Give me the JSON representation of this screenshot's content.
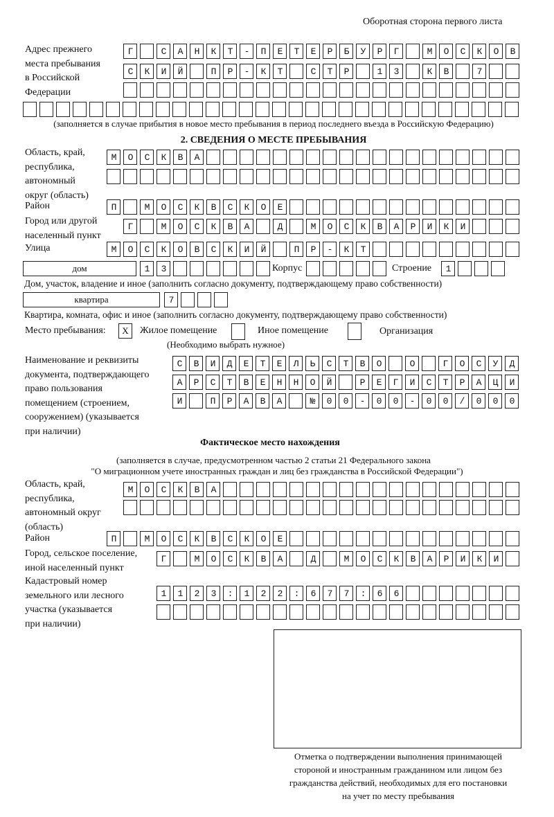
{
  "header": "Оборотная сторона первого листа",
  "previous_address": {
    "label": [
      "Адрес прежнего",
      "места пребывания",
      "в Российской",
      "Федерации"
    ],
    "rows": [
      "Г САНКТ-ПЕТЕРБУРГ МОСКОВ",
      "СКИЙ ПР-КТ СТР 13 КВ 7",
      "",
      ""
    ],
    "note": "(заполняется в случае прибытия в новое место пребывания в период последнего въезда в Российскую Федерацию)"
  },
  "section2": {
    "title": "2. СВЕДЕНИЯ О МЕСТЕ ПРЕБЫВАНИЯ",
    "region_label": [
      "Область, край,",
      "республика,",
      "автономный",
      "округ (область)"
    ],
    "region_rows": [
      "МОСКВА",
      ""
    ],
    "district_label": "Район",
    "district": "П МОСКВСКОЕ",
    "city_label": [
      "Город или другой",
      "населенный пункт"
    ],
    "city": "Г МОСКВА Д МОСКВАРИКИ",
    "street_label": "Улица",
    "street": "МОСКОВСКИЙ ПР-КТ",
    "house_type": "дом",
    "house_number": "13",
    "korpus_label": "Корпус",
    "korpus": "",
    "building_label": "Строение",
    "building": "1",
    "house_note": "Дом, участок, владение и иное (заполнить согласно документу, подтверждающему право собственности)",
    "apartment_type": "квартира",
    "apartment_number": "7",
    "apartment_note": "Квартира, комната, офис и иное (заполнить согласно документу, подтверждающему право собственности)",
    "stay_place_label": "Место пребывания:",
    "options": [
      {
        "label": "Жилое помещение",
        "mark": "X"
      },
      {
        "label": "Иное помещение",
        "mark": ""
      },
      {
        "label": "Организация",
        "mark": ""
      }
    ],
    "options_note": "(Необходимо выбрать нужное)",
    "document_label": [
      "Наименование и реквизиты",
      "документа, подтверждающего",
      "право пользования",
      "помещением (строением,",
      "сооружением) (указывается",
      "при наличии)"
    ],
    "document_rows": [
      "СВИДЕТЕЛЬСТВО О ГОСУД",
      "АРСТВЕННОЙ РЕГИСТРАЦИ",
      "И ПРАВА №00-00-00/000"
    ]
  },
  "actual_location": {
    "title": "Фактическое место нахождения",
    "note": [
      "(заполняется в случае, предусмотренном частью 2 статьи 21 Федерального закона",
      "\"О миграционном учете иностранных граждан и лиц без гражданства в Российской Федерации\")"
    ],
    "region_label": [
      "Область, край,",
      "республика,",
      "автономный округ",
      "(область)"
    ],
    "region_rows": [
      "МОСКВА",
      ""
    ],
    "district_label": "Район",
    "district": "П МОСКВСКОЕ",
    "city_label": [
      "Город, сельское поселение,",
      "иной населенный пункт"
    ],
    "city": "Г МОСКВА Д МОСКВАРИКИ",
    "cadastral_label": [
      "Кадастровый номер",
      "земельного или лесного",
      "участка (указывается",
      "при наличии)"
    ],
    "cadastral_rows": [
      "1123:122:677:66",
      ""
    ]
  },
  "confirmation": {
    "caption": [
      "Отметка о подтверждении выполнения принимающей",
      "стороной и иностранным гражданином или лицом без",
      "гражданства действий, необходимых для его постановки",
      "на учет по месту пребывания"
    ]
  }
}
